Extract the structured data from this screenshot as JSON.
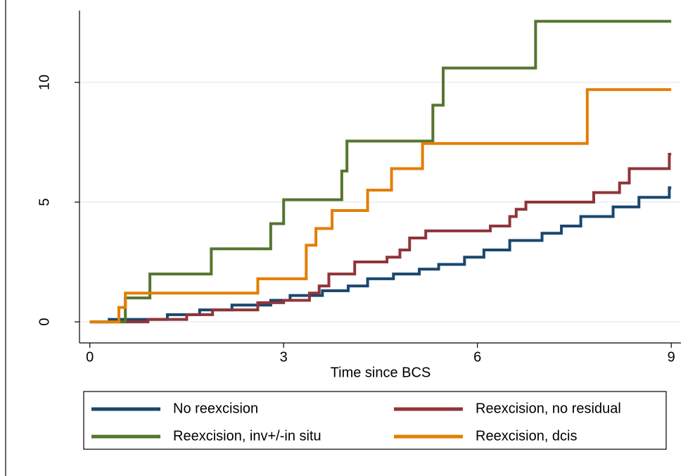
{
  "chart_data": {
    "type": "step",
    "x_label": "Time since BCS",
    "xlim": [
      -0.16,
      9.15
    ],
    "xticks": [
      0,
      3,
      6,
      9
    ],
    "ylim": [
      -0.88,
      13
    ],
    "yticks": [
      0,
      5,
      10
    ],
    "grid": true,
    "series": [
      {
        "name": "No reexcision",
        "color": "#1a476f",
        "x": [
          0,
          0.3,
          0.7,
          1.2,
          1.7,
          2.2,
          2.8,
          3.1,
          3.6,
          4.0,
          4.3,
          4.7,
          5.1,
          5.4,
          5.8,
          6.1,
          6.5,
          7.0,
          7.3,
          7.6,
          8.1,
          8.5,
          8.97,
          9
        ],
        "values": [
          0,
          0.1,
          0.1,
          0.3,
          0.5,
          0.7,
          0.9,
          1.1,
          1.3,
          1.5,
          1.8,
          2.0,
          2.2,
          2.4,
          2.7,
          3.0,
          3.4,
          3.7,
          4.0,
          4.4,
          4.8,
          5.2,
          5.6,
          5.6
        ]
      },
      {
        "name": "Reexcision, no residual",
        "color": "#90353b",
        "x": [
          0,
          0.6,
          0.9,
          1.5,
          1.9,
          2.6,
          3.0,
          3.4,
          3.55,
          3.7,
          4.1,
          4.6,
          4.8,
          4.95,
          5.2,
          6.2,
          6.5,
          6.6,
          6.75,
          7.8,
          8.2,
          8.35,
          8.97,
          9
        ],
        "values": [
          0,
          0,
          0.1,
          0.3,
          0.5,
          0.8,
          0.9,
          1.2,
          1.5,
          2.0,
          2.5,
          2.7,
          3.0,
          3.5,
          3.8,
          4.0,
          4.4,
          4.7,
          5.0,
          5.4,
          5.8,
          6.4,
          7.0,
          7.0
        ]
      },
      {
        "name": "Reexcision, inv+/-in situ",
        "color": "#55752f",
        "x": [
          0,
          0.55,
          0.93,
          1.88,
          2.8,
          3.0,
          3.9,
          3.98,
          5.31,
          5.47,
          6.9,
          9
        ],
        "values": [
          0,
          1.0,
          2.0,
          3.05,
          4.1,
          5.1,
          6.3,
          7.55,
          9.05,
          10.6,
          12.55,
          12.55
        ]
      },
      {
        "name": "Reexcision, dcis",
        "color": "#e37e00",
        "x": [
          0,
          0.45,
          0.55,
          2.6,
          3.35,
          3.5,
          3.75,
          4.3,
          4.67,
          5.15,
          7.7,
          9
        ],
        "values": [
          0,
          0.6,
          1.2,
          1.8,
          3.2,
          3.9,
          4.65,
          5.5,
          6.4,
          7.45,
          9.7,
          9.7
        ]
      }
    ]
  }
}
